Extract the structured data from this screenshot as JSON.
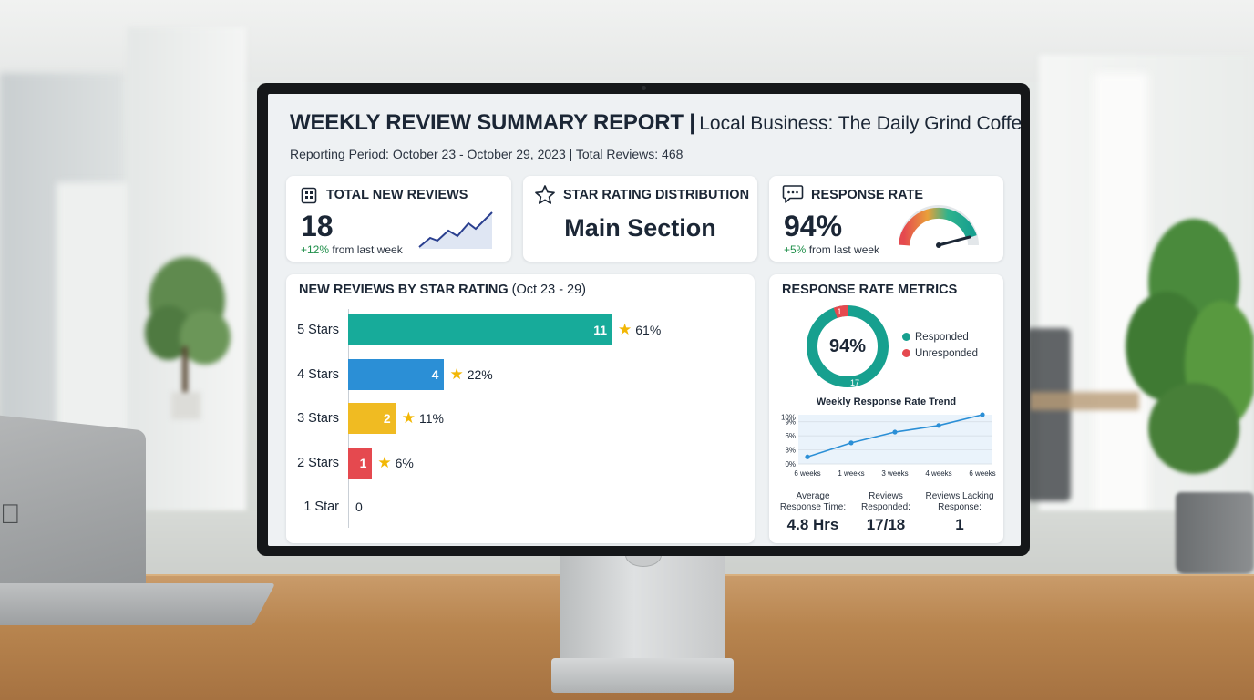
{
  "header": {
    "title": "WEEKLY REVIEW SUMMARY REPORT |",
    "business": "Local Business: The Daily Grind Coffee",
    "subtitle": "Reporting Period: October 23 - October 29, 2023 | Total Reviews: 468"
  },
  "kpis": {
    "total_new_reviews": {
      "title": "TOTAL NEW REVIEWS",
      "value": "18",
      "delta": "+12%",
      "delta_suffix": "from last week",
      "icon": "calendar-grid-icon"
    },
    "star_distribution": {
      "title": "STAR RATING DISTRIBUTION",
      "value": "Main Section",
      "icon": "star-outline-icon"
    },
    "response_rate": {
      "title": "RESPONSE RATE",
      "value": "94%",
      "delta": "+5%",
      "delta_suffix": "from last week",
      "icon": "chat-bubble-icon",
      "gauge_fraction": 0.94
    }
  },
  "bar_chart": {
    "title": "NEW REVIEWS BY STAR RATING",
    "title_range": "(Oct 23 - 29)",
    "rows": [
      {
        "label": "5 Stars",
        "value": "11",
        "pct": "61%",
        "color": "#17ab9a"
      },
      {
        "label": "4 Stars",
        "value": "4",
        "pct": "22%",
        "color": "#2b8fd6"
      },
      {
        "label": "3 Stars",
        "value": "2",
        "pct": "11%",
        "color": "#f0bb22"
      },
      {
        "label": "2 Stars",
        "value": "1",
        "pct": "6%",
        "color": "#e5494f"
      },
      {
        "label": "1 Star",
        "value": "0",
        "pct": "",
        "color": "#cccccc"
      }
    ]
  },
  "chart_data": {
    "type": "bar",
    "orientation": "horizontal",
    "title": "NEW REVIEWS BY STAR RATING (Oct 23 - 29)",
    "categories": [
      "5 Stars",
      "4 Stars",
      "3 Stars",
      "2 Stars",
      "1 Star"
    ],
    "values": [
      11,
      4,
      2,
      1,
      0
    ],
    "percent_labels": [
      "61%",
      "22%",
      "11%",
      "6%",
      ""
    ]
  },
  "metrics": {
    "title": "RESPONSE RATE METRICS",
    "donut": {
      "center": "94%",
      "responded": 17,
      "unresponded": 1,
      "responded_label": "17",
      "unresponded_label": "1"
    },
    "legend": [
      {
        "label": "Responded",
        "color": "#17a08f"
      },
      {
        "label": "Unresponded",
        "color": "#e5494f"
      }
    ],
    "trend": {
      "title": "Weekly Response Rate Trend",
      "y_ticks": [
        "0%",
        "3%",
        "6%",
        "9%",
        "10%"
      ],
      "x_ticks": [
        "6 weeks",
        "1 weeks",
        "3 weeks",
        "4 weeks",
        "6 weeks"
      ],
      "values": [
        1.5,
        4.5,
        6.8,
        8.2,
        10.5
      ],
      "ylim": [
        0,
        10.5
      ]
    },
    "stats": [
      {
        "label1": "Average",
        "label2": "Response Time:",
        "value": "4.8 Hrs"
      },
      {
        "label1": "Reviews",
        "label2": "Responded:",
        "value": "17/18"
      },
      {
        "label1": "Reviews Lacking",
        "label2": "Response:",
        "value": "1"
      }
    ]
  },
  "laptop_logo_icon": "apple-logo-icon"
}
